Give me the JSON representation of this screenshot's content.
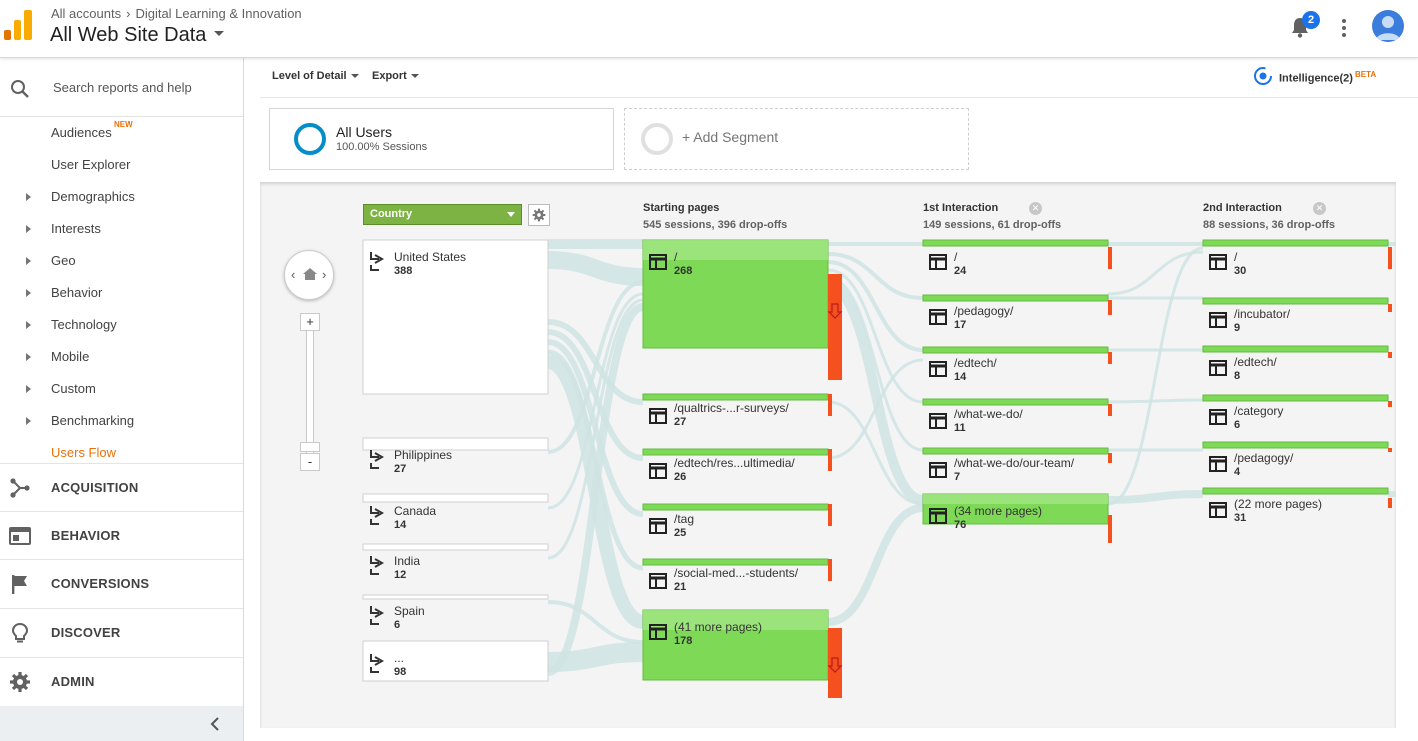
{
  "header": {
    "breadcrumb": [
      "All accounts",
      "Digital Learning & Innovation"
    ],
    "property_title": "All Web Site Data",
    "notification_count": "2"
  },
  "sidebar": {
    "search_placeholder": "Search reports and help",
    "items": [
      {
        "label": "Audiences",
        "badge": "NEW",
        "expandable": false
      },
      {
        "label": "User Explorer",
        "expandable": false
      },
      {
        "label": "Demographics",
        "expandable": true
      },
      {
        "label": "Interests",
        "expandable": true
      },
      {
        "label": "Geo",
        "expandable": true
      },
      {
        "label": "Behavior",
        "expandable": true
      },
      {
        "label": "Technology",
        "expandable": true
      },
      {
        "label": "Mobile",
        "expandable": true
      },
      {
        "label": "Custom",
        "expandable": true
      },
      {
        "label": "Benchmarking",
        "expandable": true
      },
      {
        "label": "Users Flow",
        "expandable": false,
        "active": true
      }
    ],
    "sections": [
      {
        "label": "ACQUISITION",
        "icon": "acquisition-icon"
      },
      {
        "label": "BEHAVIOR",
        "icon": "behavior-icon"
      },
      {
        "label": "CONVERSIONS",
        "icon": "flag-icon"
      },
      {
        "label": "DISCOVER",
        "icon": "lightbulb-icon"
      },
      {
        "label": "ADMIN",
        "icon": "gear-icon"
      }
    ]
  },
  "toolbar": {
    "level_of_detail": "Level of Detail",
    "export": "Export",
    "intelligence": "Intelligence(2)",
    "intelligence_badge": "BETA"
  },
  "segments": {
    "all_users": {
      "name": "All Users",
      "sub": "100.00% Sessions"
    },
    "add_segment": "+ Add Segment"
  },
  "flow": {
    "dimension": "Country",
    "countries": [
      {
        "label": "United States",
        "count": "388"
      },
      {
        "label": "Philippines",
        "count": "27"
      },
      {
        "label": "Canada",
        "count": "14"
      },
      {
        "label": "India",
        "count": "12"
      },
      {
        "label": "Spain",
        "count": "6"
      },
      {
        "label": "...",
        "count": "98"
      }
    ],
    "columns": [
      {
        "title": "Starting pages",
        "sub": "545 sessions, 396 drop-offs",
        "closable": false,
        "nodes": [
          {
            "label": "/",
            "count": "268"
          },
          {
            "label": "/qualtrics-...r-surveys/",
            "count": "27"
          },
          {
            "label": "/edtech/res...ultimedia/",
            "count": "26"
          },
          {
            "label": "/tag",
            "count": "25"
          },
          {
            "label": "/social-med...-students/",
            "count": "21"
          },
          {
            "label": "(41 more pages)",
            "count": "178"
          }
        ]
      },
      {
        "title": "1st Interaction",
        "sub": "149 sessions, 61 drop-offs",
        "closable": true,
        "nodes": [
          {
            "label": "/",
            "count": "24"
          },
          {
            "label": "/pedagogy/",
            "count": "17"
          },
          {
            "label": "/edtech/",
            "count": "14"
          },
          {
            "label": "/what-we-do/",
            "count": "11"
          },
          {
            "label": "/what-we-do/our-team/",
            "count": "7"
          },
          {
            "label": "(34 more pages)",
            "count": "76"
          }
        ]
      },
      {
        "title": "2nd Interaction",
        "sub": "88 sessions, 36 drop-offs",
        "closable": true,
        "nodes": [
          {
            "label": "/",
            "count": "30"
          },
          {
            "label": "/incubator/",
            "count": "9"
          },
          {
            "label": "/edtech/",
            "count": "8"
          },
          {
            "label": "/category",
            "count": "6"
          },
          {
            "label": "/pedagogy/",
            "count": "4"
          },
          {
            "label": "(22 more pages)",
            "count": "31"
          }
        ]
      }
    ]
  },
  "colors": {
    "accent": "#e8710a",
    "node_green": "#7ed957",
    "dropoff_red": "#f4511e",
    "flow_link": "#cfe3e3",
    "brand_blue": "#058dc7"
  }
}
